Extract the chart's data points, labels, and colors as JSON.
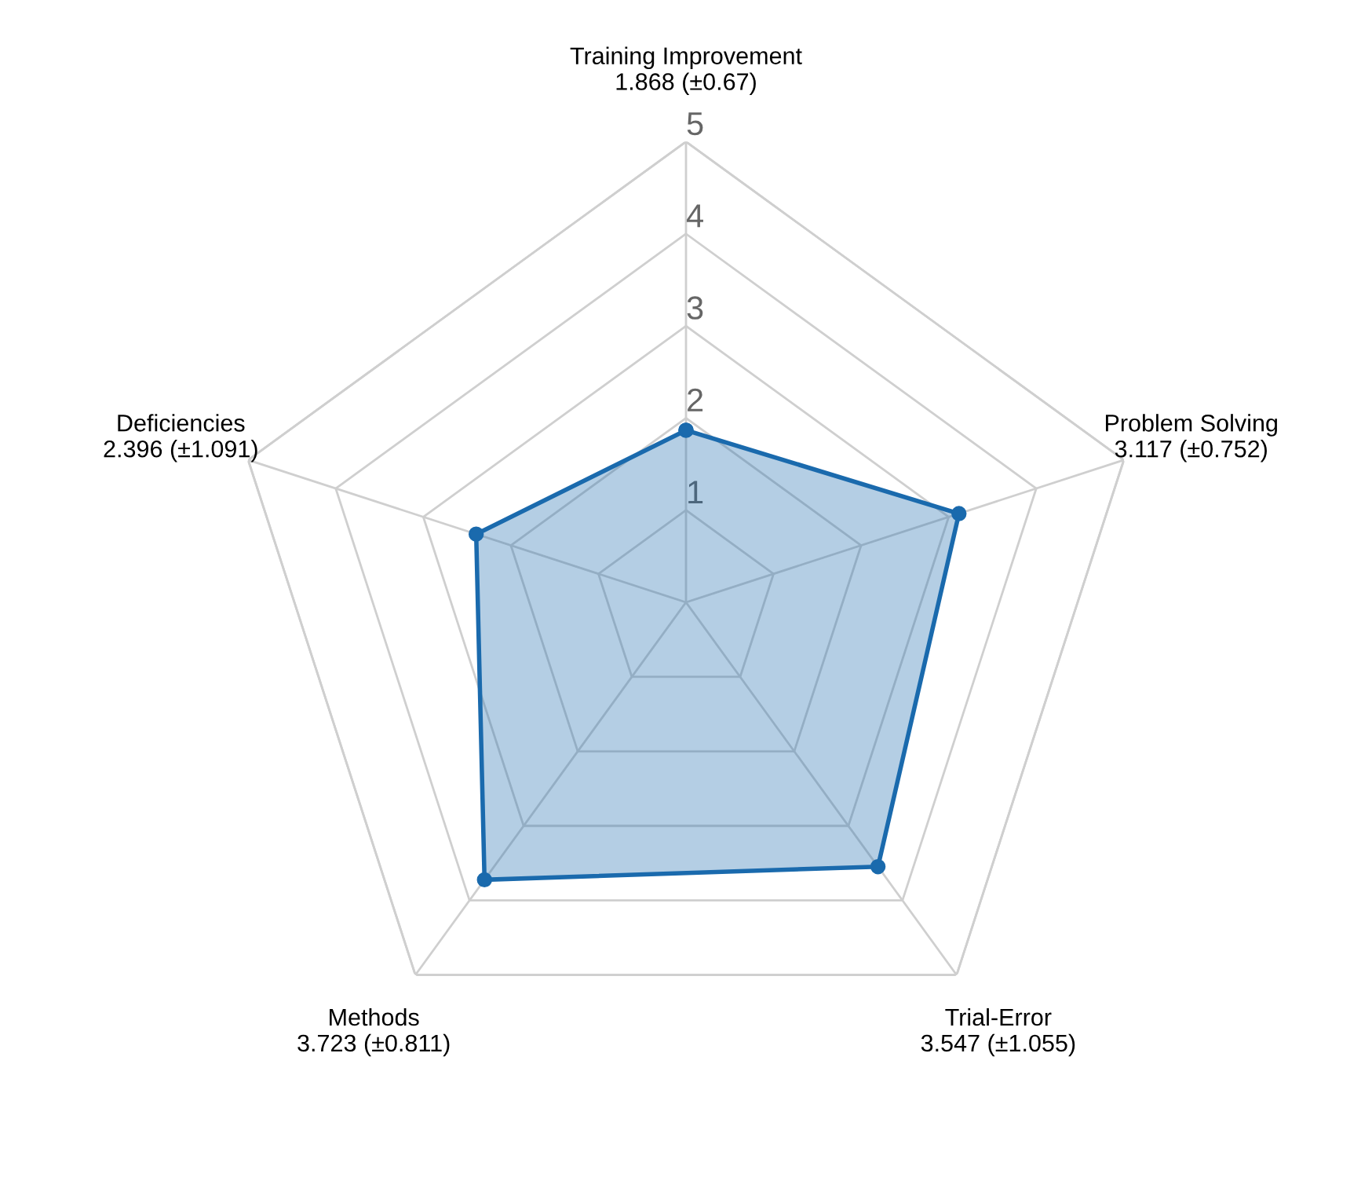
{
  "chart_data": {
    "type": "radar",
    "categories": [
      "Training Improvement\n1.868 (±0.67)",
      "Problem Solving\n3.117 (±0.752)",
      "Trial-Error\n3.547 (±1.055)",
      "Methods\n3.723 (±0.811)",
      "Deficiencies\n2.396 (±1.091)"
    ],
    "series": [
      {
        "color": "#1a6aad",
        "values": [
          1.868,
          3.117,
          3.547,
          3.723,
          2.396
        ]
      }
    ],
    "ylim": [
      0,
      5
    ],
    "yticks": [
      1,
      2,
      3,
      4,
      5
    ],
    "grid": true,
    "marker": "circle",
    "legend": false
  }
}
